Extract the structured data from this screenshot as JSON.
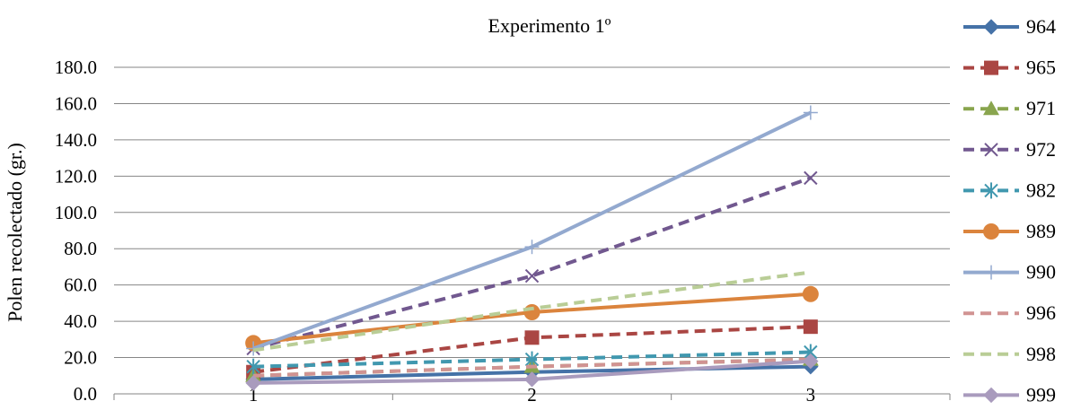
{
  "chart_data": {
    "type": "line",
    "title": "Experimento 1º",
    "xlabel": "",
    "ylabel": "Polen recolectado (gr.)",
    "categories": [
      "1",
      "2",
      "3"
    ],
    "ylim": [
      0,
      180
    ],
    "y_ticks": [
      "0.0",
      "20.0",
      "40.0",
      "60.0",
      "80.0",
      "100.0",
      "120.0",
      "140.0",
      "160.0",
      "180.0"
    ],
    "grid": true,
    "legend_position": "right",
    "series": [
      {
        "name": "964",
        "values": [
          8,
          12,
          15
        ],
        "color": "#4572A7",
        "dash": "solid",
        "marker": "diamond"
      },
      {
        "name": "965",
        "values": [
          12,
          31,
          37
        ],
        "color": "#AA4643",
        "dash": "dashed",
        "marker": "square"
      },
      {
        "name": "971",
        "values": [
          10,
          15,
          19
        ],
        "color": "#89A54E",
        "dash": "dashed",
        "marker": "triangle"
      },
      {
        "name": "972",
        "values": [
          25,
          65,
          119
        ],
        "color": "#71588F",
        "dash": "dashed",
        "marker": "x"
      },
      {
        "name": "982",
        "values": [
          15,
          19,
          23
        ],
        "color": "#4198AF",
        "dash": "dashed",
        "marker": "asterisk"
      },
      {
        "name": "989",
        "values": [
          28,
          45,
          55
        ],
        "color": "#DB843D",
        "dash": "solid",
        "marker": "circle"
      },
      {
        "name": "990",
        "values": [
          25,
          81,
          155
        ],
        "color": "#93A9CF",
        "dash": "solid",
        "marker": "plus"
      },
      {
        "name": "996",
        "values": [
          10,
          15,
          19
        ],
        "color": "#D19392",
        "dash": "dashed",
        "marker": "none"
      },
      {
        "name": "998",
        "values": [
          24,
          47,
          67
        ],
        "color": "#B9CD96",
        "dash": "dashed",
        "marker": "none"
      },
      {
        "name": "999",
        "values": [
          6,
          8,
          18
        ],
        "color": "#A99BBD",
        "dash": "solid",
        "marker": "diamond"
      }
    ]
  }
}
